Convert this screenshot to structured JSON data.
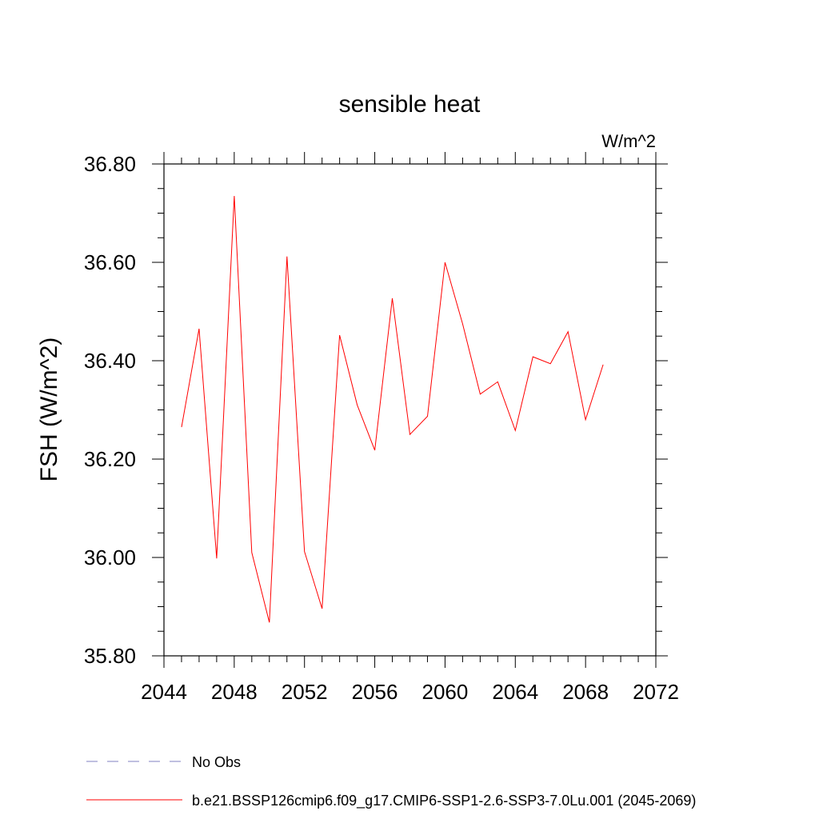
{
  "chart_data": {
    "type": "line",
    "title": "sensible heat",
    "units": "W/m^2",
    "ylabel": "FSH  (W/m^2)",
    "xlabel": "",
    "xlim": [
      2044,
      2072
    ],
    "ylim": [
      35.8,
      36.8
    ],
    "xticks": [
      "2044",
      "2048",
      "2052",
      "2056",
      "2060",
      "2064",
      "2068",
      "2072"
    ],
    "yticks": [
      "35.80",
      "36.00",
      "36.20",
      "36.40",
      "36.60",
      "36.80"
    ],
    "grid": false,
    "series": [
      {
        "name": "b.e21.BSSP126cmip6.f09_g17.CMIP6-SSP1-2.6-SSP3-7.0Lu.001 (2045-2069)",
        "color": "#ff0000",
        "style": "solid",
        "x": [
          2045,
          2046,
          2047,
          2048,
          2049,
          2050,
          2051,
          2052,
          2053,
          2054,
          2055,
          2056,
          2057,
          2058,
          2059,
          2060,
          2061,
          2062,
          2063,
          2064,
          2065,
          2066,
          2067,
          2068,
          2069
        ],
        "y": [
          36.265,
          36.465,
          35.998,
          36.735,
          36.01,
          35.868,
          36.612,
          36.012,
          35.896,
          36.452,
          36.31,
          36.218,
          36.527,
          36.25,
          36.287,
          36.6,
          36.475,
          36.332,
          36.357,
          36.258,
          36.408,
          36.394,
          36.459,
          36.28,
          36.392
        ]
      }
    ],
    "legend": {
      "placement": "bottom-left",
      "entries": [
        {
          "label": "No Obs",
          "color": "#8080c0",
          "style": "dashed"
        },
        {
          "label": "b.e21.BSSP126cmip6.f09_g17.CMIP6-SSP1-2.6-SSP3-7.0Lu.001 (2045-2069)",
          "color": "#ff0000",
          "style": "solid"
        }
      ]
    }
  }
}
